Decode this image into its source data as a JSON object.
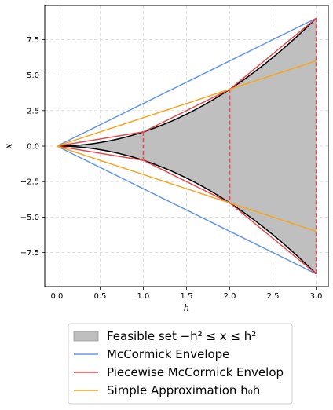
{
  "chart_data": {
    "type": "area",
    "x": [
      0,
      0.5,
      1.0,
      1.5,
      2.0,
      2.5,
      3.0
    ],
    "xlim": [
      -0.14,
      3.14
    ],
    "ylim": [
      -9.9,
      9.9
    ],
    "xticks": [
      0.0,
      0.5,
      1.0,
      1.5,
      2.0,
      2.5,
      3.0
    ],
    "xtick_labels": [
      "0.0",
      "0.5",
      "1.0",
      "1.5",
      "2.0",
      "2.5",
      "3.0"
    ],
    "yticks": [
      -7.5,
      -5.0,
      -2.5,
      0.0,
      2.5,
      5.0,
      7.5
    ],
    "ytick_labels": [
      "−7.5",
      "−5.0",
      "−2.5",
      "0.0",
      "2.5",
      "5.0",
      "7.5"
    ],
    "xlabel": "h",
    "ylabel": "x",
    "grid": true,
    "legend_position": "below",
    "series": [
      {
        "key": "feasible",
        "kind": "band",
        "color": "#bfbfbf",
        "edge_color": "#000000",
        "x": [
          0,
          0.25,
          0.5,
          0.75,
          1.0,
          1.25,
          1.5,
          1.75,
          2.0,
          2.25,
          2.5,
          2.75,
          3.0
        ],
        "upper": [
          0,
          0.0625,
          0.25,
          0.5625,
          1.0,
          1.5625,
          2.25,
          3.0625,
          4.0,
          5.0625,
          6.25,
          7.5625,
          9.0
        ],
        "lower": [
          0,
          -0.0625,
          -0.25,
          -0.5625,
          -1.0,
          -1.5625,
          -2.25,
          -3.0625,
          -4.0,
          -5.0625,
          -6.25,
          -7.5625,
          -9.0
        ]
      },
      {
        "key": "mccormick",
        "kind": "lines",
        "color": "#6495ed",
        "lines": [
          {
            "x": [
              0,
              3
            ],
            "y": [
              0,
              9
            ]
          },
          {
            "x": [
              0,
              3
            ],
            "y": [
              0,
              -9
            ]
          }
        ]
      },
      {
        "key": "piecewise",
        "kind": "lines",
        "color": "#e5484d",
        "lines": [
          {
            "x": [
              0,
              1,
              2,
              3
            ],
            "y": [
              0,
              1,
              4,
              9
            ]
          },
          {
            "x": [
              0,
              1,
              2,
              3
            ],
            "y": [
              0,
              -1,
              -4,
              -9
            ]
          }
        ]
      },
      {
        "key": "simple",
        "kind": "lines",
        "color": "#f5a623",
        "lines": [
          {
            "x": [
              0,
              3
            ],
            "y": [
              0,
              6
            ]
          },
          {
            "x": [
              0,
              3
            ],
            "y": [
              0,
              -6
            ]
          }
        ]
      }
    ],
    "vertical_dashed_lines": {
      "color": "#e5484d",
      "x": [
        1,
        2,
        3
      ]
    },
    "legend": [
      {
        "key": "feasible",
        "label": "Feasible set −h² ≤ x ≤ h²",
        "swatch": "patch",
        "color": "#bfbfbf"
      },
      {
        "key": "mccormick",
        "label": "McCormick Envelope",
        "swatch": "line",
        "color": "#6495ed"
      },
      {
        "key": "piecewise",
        "label": "Piecewise McCormick Envelop",
        "swatch": "line",
        "color": "#e5484d"
      },
      {
        "key": "simple",
        "label": "Simple Approximation h₀h",
        "swatch": "line",
        "color": "#f5a623"
      }
    ]
  }
}
